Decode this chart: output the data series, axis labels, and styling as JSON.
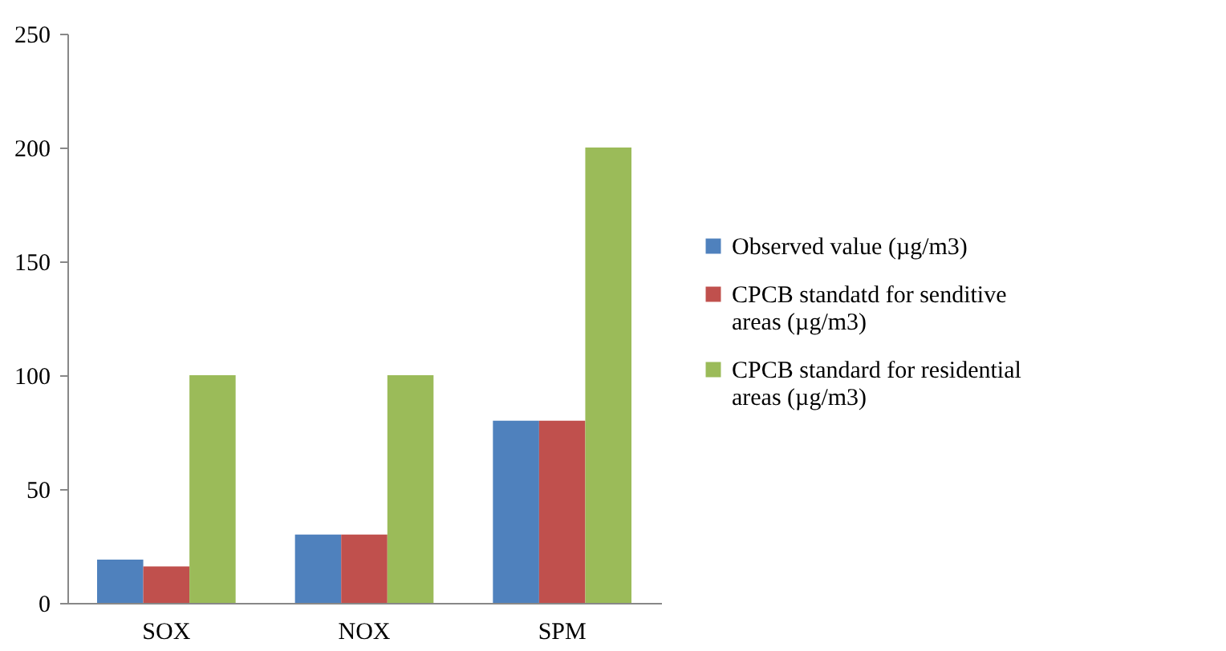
{
  "chart_data": {
    "type": "bar",
    "categories": [
      "SOX",
      "NOX",
      "SPM"
    ],
    "series": [
      {
        "name": "Observed value (µg/m3)",
        "color": "#4f81bd",
        "values": [
          19,
          30,
          80
        ]
      },
      {
        "name": "CPCB standatd for senditive areas (µg/m3)",
        "color": "#c0504d",
        "values": [
          16,
          30,
          80
        ]
      },
      {
        "name": "CPCB standard for residential areas (µg/m3)",
        "color": "#9bbb59",
        "values": [
          100,
          100,
          200
        ]
      }
    ],
    "ylim": [
      0,
      250
    ],
    "yticks": [
      0,
      50,
      100,
      150,
      200,
      250
    ],
    "grid": false,
    "legend": "right"
  }
}
